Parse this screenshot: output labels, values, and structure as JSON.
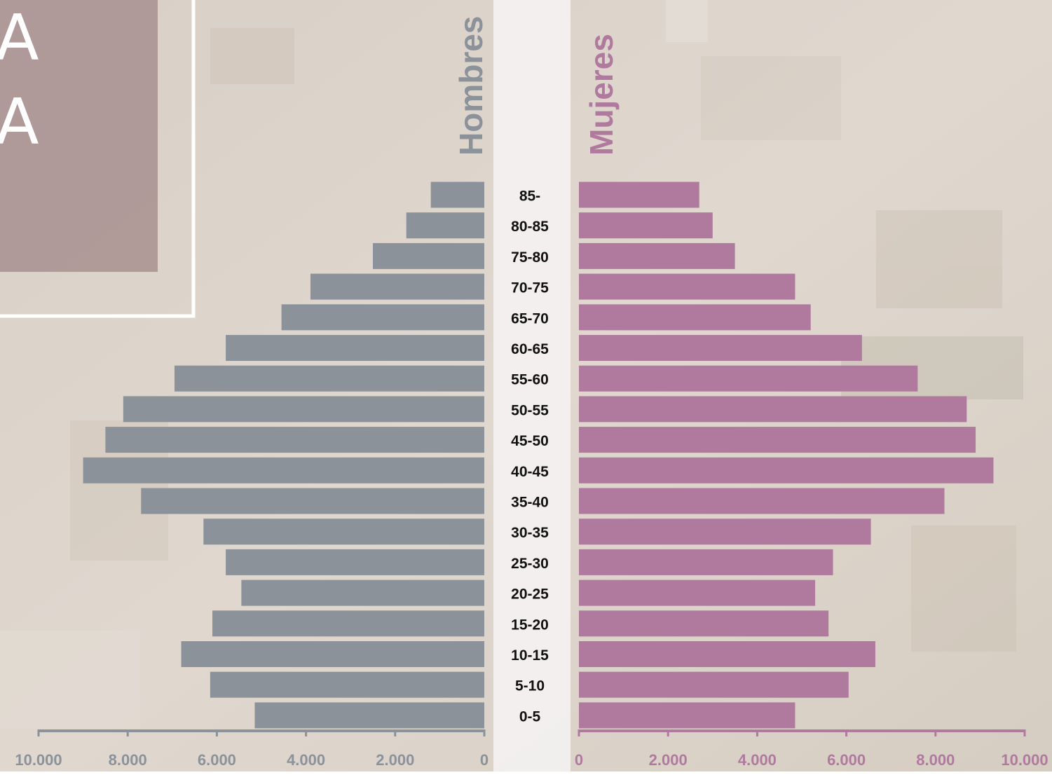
{
  "banner": {
    "lines": [
      "A",
      "A"
    ]
  },
  "chart_data": {
    "type": "pyramid",
    "categories": [
      "85-",
      "80-85",
      "75-80",
      "70-75",
      "65-70",
      "60-65",
      "55-60",
      "50-55",
      "45-50",
      "40-45",
      "35-40",
      "30-35",
      "25-30",
      "20-25",
      "15-20",
      "10-15",
      "5-10",
      "0-5"
    ],
    "series": [
      {
        "name": "Hombres",
        "color": "#8b9299",
        "values": [
          1200,
          1750,
          2500,
          3900,
          4550,
          5800,
          6950,
          8100,
          8500,
          9000,
          7700,
          6300,
          5800,
          5450,
          6100,
          6800,
          6150,
          5150
        ]
      },
      {
        "name": "Mujeres",
        "color": "#b07a9f",
        "values": [
          2700,
          3000,
          3500,
          4850,
          5200,
          6350,
          7600,
          8700,
          8900,
          9300,
          8200,
          6550,
          5700,
          5300,
          5600,
          6650,
          6050,
          4850
        ]
      }
    ],
    "xlim": [
      0,
      10000
    ],
    "xticks": [
      0,
      {
        "value": 2000,
        "label": "2.000"
      },
      {
        "value": 4000,
        "label": "4.000"
      },
      {
        "value": 6000,
        "label": "6.000"
      },
      {
        "value": 8000,
        "label": "8.000"
      },
      {
        "value": 10000,
        "label": "10.000"
      }
    ]
  }
}
